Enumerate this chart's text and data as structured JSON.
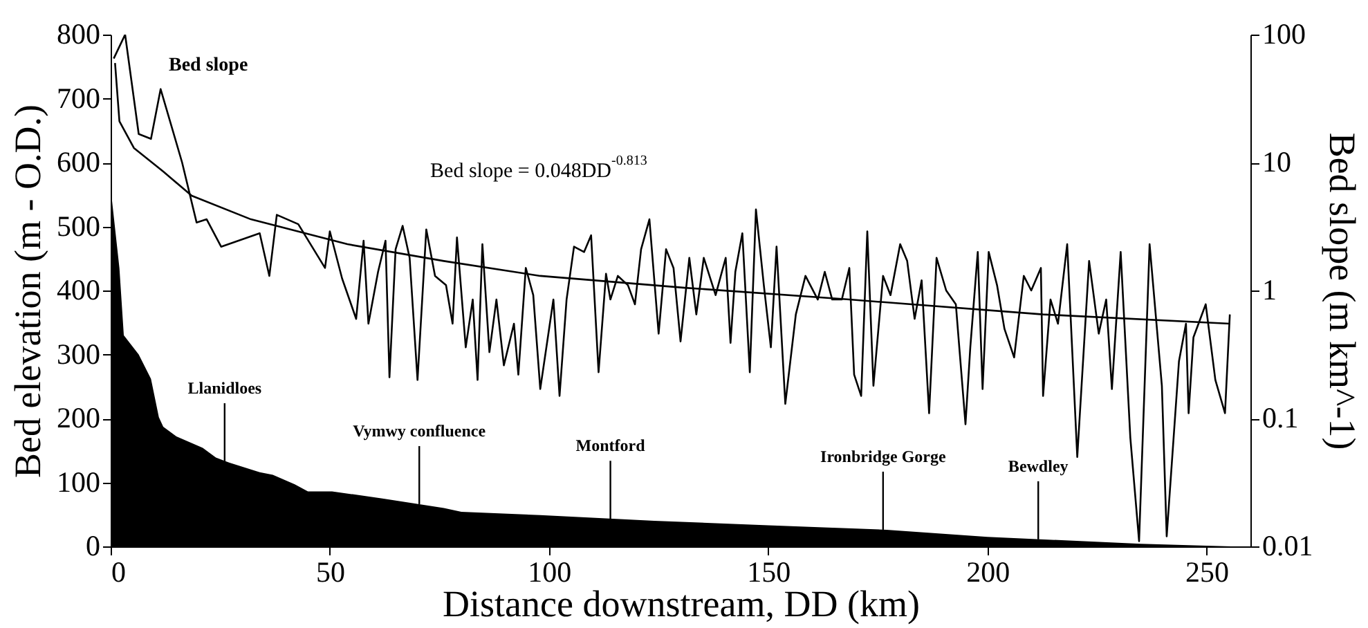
{
  "chart_data": {
    "type": "area",
    "xlabel": "Distance downstream, DD (km)",
    "ylabel": "Bed elevation (m - O.D.)",
    "y2label": "Bed slope (m km^-1)",
    "xlim": [
      0,
      260
    ],
    "xticks": [
      0,
      50,
      100,
      150,
      200,
      250
    ],
    "ylim": [
      0,
      800
    ],
    "yticks": [
      0,
      100,
      200,
      300,
      400,
      500,
      600,
      700,
      800
    ],
    "y2lim": [
      0.01,
      100
    ],
    "y2ticks": [
      0.01,
      0.1,
      1,
      10,
      100
    ],
    "log": "y2",
    "grid": false,
    "series": [
      {
        "color": "#000000",
        "x": [
          0,
          2,
          3,
          6.4,
          9.2,
          11,
          12,
          15,
          21,
          24,
          27,
          34,
          37,
          42,
          45,
          50.5,
          62,
          76,
          80,
          98,
          124,
          150,
          177,
          200,
          235,
          250,
          256
        ],
        "values": [
          560,
          435,
          330,
          300,
          262,
          202,
          187,
          172,
          154,
          139,
          131,
          116,
          112,
          97,
          86,
          86,
          75,
          60,
          54,
          49,
          40,
          33,
          26,
          15,
          4,
          1,
          0
        ]
      },
      {
        "name": "Bed slope",
        "type": "line",
        "axis": "y2",
        "color": "#000000",
        "x": [
          0.7,
          3.3,
          6.4,
          9.2,
          11.4,
          16.3,
          19.6,
          21.9,
          25.2,
          34,
          36.2,
          37.9,
          42.8,
          48.9,
          50,
          52.8,
          56,
          57.7,
          58.8,
          61,
          62.7,
          63.6,
          65,
          66.6,
          68.2,
          70,
          72,
          74,
          76.5,
          78,
          79,
          81,
          82.6,
          83.7,
          84.8,
          86.4,
          88,
          89.7,
          92,
          93,
          94.7,
          96.4,
          98,
          101,
          102.4,
          104,
          105.7,
          108,
          109.6,
          111.3,
          113,
          114,
          115.7,
          118,
          119.6,
          121,
          122.9,
          125,
          126.7,
          128.4,
          130,
          132,
          133.6,
          135.3,
          138,
          140.3,
          141.4,
          142.5,
          144.1,
          145.8,
          147.2,
          149,
          150.6,
          151.9,
          153.9,
          156.3,
          158.5,
          161.3,
          162.9,
          164.6,
          166.8,
          168.5,
          169.6,
          171.2,
          172.6,
          174,
          176.2,
          177.9,
          180.1,
          181.7,
          183.4,
          185,
          186.7,
          188.4,
          190.6,
          192.8,
          195,
          196.1,
          197.8,
          198.9,
          200.3,
          202.2,
          203.9,
          206.1,
          208.3,
          210,
          212.2,
          212.7,
          214.4,
          216.1,
          218.2,
          220.5,
          223.2,
          225.4,
          227.1,
          228.4,
          230.4,
          232.6,
          234.6,
          237,
          239.8,
          240.9,
          243.7,
          245.3,
          245.9,
          247,
          249.8,
          252,
          254.2,
          255.3
        ],
        "values": [
          65,
          100,
          16.7,
          15.3,
          37.5,
          10,
          3.4,
          3.6,
          2.2,
          2.8,
          1.3,
          3.9,
          3.3,
          1.5,
          2.9,
          1.24,
          0.6,
          2.45,
          0.55,
          1.4,
          2.45,
          0.21,
          2.1,
          3.2,
          1.8,
          0.2,
          3,
          1.3,
          1.1,
          0.55,
          2.6,
          0.36,
          0.85,
          0.2,
          2.3,
          0.33,
          0.85,
          0.26,
          0.55,
          0.22,
          1.5,
          0.92,
          0.17,
          0.85,
          0.15,
          0.85,
          2.2,
          2,
          2.7,
          0.23,
          1.35,
          0.85,
          1.3,
          1.1,
          0.78,
          2.1,
          3.6,
          0.46,
          2.1,
          1.5,
          0.4,
          1.8,
          0.65,
          1.8,
          0.92,
          1.8,
          0.39,
          1.4,
          2.8,
          0.23,
          4.3,
          1.1,
          0.36,
          2.2,
          0.13,
          0.65,
          1.3,
          0.85,
          1.4,
          0.85,
          0.85,
          1.5,
          0.22,
          0.15,
          2.9,
          0.18,
          1.3,
          0.92,
          2.3,
          1.7,
          0.6,
          1.2,
          0.11,
          1.8,
          1,
          0.78,
          0.09,
          0.36,
          2,
          0.17,
          2,
          1.1,
          0.5,
          0.3,
          1.3,
          1,
          1.5,
          0.15,
          0.85,
          0.55,
          2.3,
          0.05,
          1.7,
          0.46,
          0.85,
          0.17,
          2,
          0.071,
          0.011,
          2.3,
          0.18,
          0.012,
          0.28,
          0.55,
          0.11,
          0.43,
          0.78,
          0.2,
          0.11,
          0.65
        ]
      },
      {
        "type": "line",
        "axis": "y2",
        "color": "#000000",
        "x": [
          1,
          2,
          5.3,
          12,
          18.5,
          32,
          54,
          76,
          98,
          131,
          168.5,
          212.7,
          255.3
        ],
        "values": [
          60,
          21,
          13,
          8.5,
          5.5,
          3.6,
          2.3,
          1.7,
          1.3,
          1.05,
          0.85,
          0.65,
          0.55
        ]
      }
    ],
    "annotations": [
      "Bed slope = 0.048DD$^{-0.813}$",
      {
        "text": "Llanidloes",
        "x": 26,
        "y": 133
      },
      {
        "text": "Vymwy confluence",
        "x": 70.4,
        "y": 66
      },
      {
        "text": "Montford",
        "x": 114,
        "y": 43
      },
      {
        "text": "Ironbridge Gorge",
        "x": 176.2,
        "y": 26
      },
      {
        "text": "Bewdley",
        "x": 211.6,
        "y": 11
      }
    ]
  }
}
